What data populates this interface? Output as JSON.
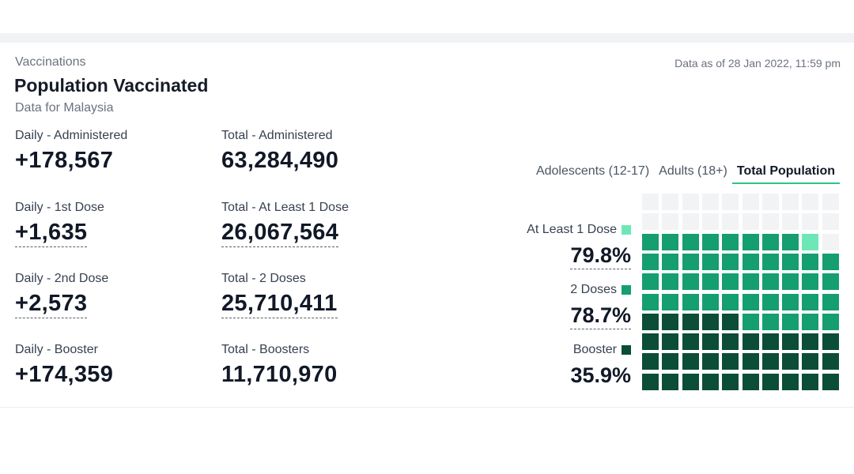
{
  "header": {
    "section": "Vaccinations",
    "title": "Population Vaccinated",
    "subtitle": "Data for Malaysia",
    "as_of": "Data as of 28 Jan 2022, 11:59 pm"
  },
  "stats": {
    "daily_administered": {
      "label": "Daily - Administered",
      "value": "+178,567"
    },
    "total_administered": {
      "label": "Total - Administered",
      "value": "63,284,490"
    },
    "daily_dose1": {
      "label": "Daily - 1st Dose",
      "value": "+1,635"
    },
    "total_dose1": {
      "label": "Total - At Least 1 Dose",
      "value": "26,067,564"
    },
    "daily_dose2": {
      "label": "Daily - 2nd Dose",
      "value": "+2,573"
    },
    "total_dose2": {
      "label": "Total - 2 Doses",
      "value": "25,710,411"
    },
    "daily_booster": {
      "label": "Daily - Booster",
      "value": "+174,359"
    },
    "total_booster": {
      "label": "Total - Boosters",
      "value": "11,710,970"
    }
  },
  "tabs": [
    {
      "label": "Adolescents (12-17)",
      "active": false
    },
    {
      "label": "Adults (18+)",
      "active": false
    },
    {
      "label": "Total Population",
      "active": true
    }
  ],
  "legend": {
    "dose1": {
      "label": "At Least 1 Dose",
      "pct": "79.8%",
      "color": "#6ee7b7"
    },
    "dose2": {
      "label": "2 Doses",
      "pct": "78.7%",
      "color": "#159e70"
    },
    "booster": {
      "label": "Booster",
      "pct": "35.9%",
      "color": "#0b4d37"
    }
  },
  "colors": {
    "empty": "#f2f3f5",
    "dose1": "#6ee7b7",
    "dose2": "#159e70",
    "booster": "#0b4d37",
    "accent": "#2ec488"
  },
  "waffle": {
    "rows": 10,
    "cols": 10,
    "at_least_1_dose_pct": 79.8,
    "two_doses_pct": 78.7,
    "booster_pct": 35.9
  }
}
